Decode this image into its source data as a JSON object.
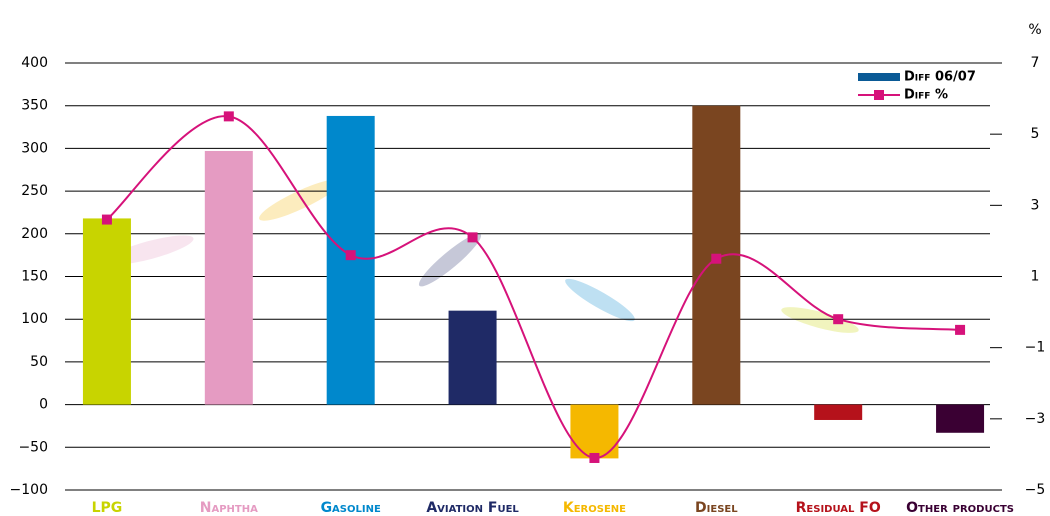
{
  "chart_data": {
    "type": "bar",
    "y2_title": "%",
    "categories": [
      "LPG",
      "Naphtha",
      "Gasoline",
      "Aviation Fuel",
      "Kerosene",
      "Diesel",
      "Residual FO",
      "Other products"
    ],
    "series": [
      {
        "name": "Diff 06/07",
        "type": "bar",
        "color": "#0a5a96",
        "colors": [
          "#c8d400",
          "#e59bc2",
          "#0088cc",
          "#1f2a66",
          "#f5b800",
          "#7a4520",
          "#b5121b",
          "#3a0033"
        ],
        "values": [
          218,
          297,
          338,
          110,
          -63,
          350,
          -18,
          -33
        ]
      },
      {
        "name": "Diff %",
        "type": "line",
        "axis": "y2",
        "color": "#d6127a",
        "values": [
          2.6,
          5.5,
          1.6,
          2.1,
          -4.1,
          1.5,
          -0.2,
          -0.5
        ]
      }
    ],
    "ylim": [
      -100,
      400
    ],
    "yticks": [
      {
        "value": -100,
        "label": "−100"
      },
      {
        "value": -50,
        "label": "−50"
      },
      0,
      50,
      100,
      150,
      200,
      250,
      300,
      350,
      400
    ],
    "y2lim": [
      -5,
      7
    ],
    "y2ticks": [
      {
        "value": -5,
        "label": "−5"
      },
      {
        "value": -3,
        "label": "−3"
      },
      {
        "value": -1,
        "label": "−1"
      },
      1,
      3,
      5,
      7
    ],
    "grid": true,
    "legend": "top-right"
  }
}
